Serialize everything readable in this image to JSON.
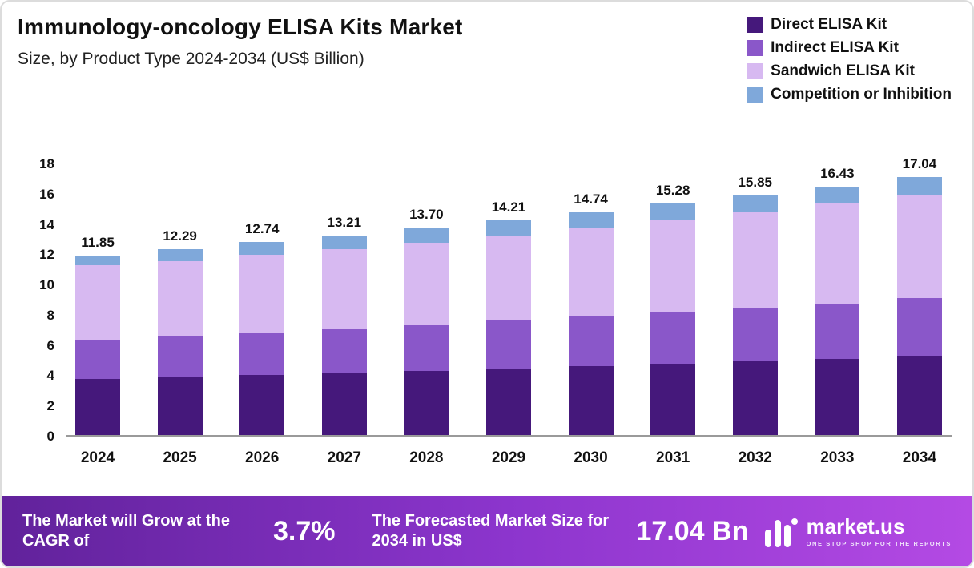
{
  "header": {
    "title": "Immunology-oncology  ELISA Kits Market",
    "subtitle": "Size, by Product Type 2024-2034 (US$ Billion)"
  },
  "chart_data": {
    "type": "bar",
    "stacked": true,
    "title": "Immunology-oncology ELISA Kits Market Size, by Product Type 2024-2034 (US$ Billion)",
    "categories": [
      "2024",
      "2025",
      "2026",
      "2027",
      "2028",
      "2029",
      "2030",
      "2031",
      "2032",
      "2033",
      "2034"
    ],
    "totals": [
      11.85,
      12.29,
      12.74,
      13.21,
      13.7,
      14.21,
      14.74,
      15.28,
      15.85,
      16.43,
      17.04
    ],
    "series": [
      {
        "name": "Direct ELISA Kit",
        "color": "#45187b",
        "values": [
          3.7,
          3.85,
          3.95,
          4.1,
          4.25,
          4.4,
          4.55,
          4.7,
          4.85,
          5.05,
          5.25
        ]
      },
      {
        "name": "Indirect ELISA Kit",
        "color": "#8a57c9",
        "values": [
          2.6,
          2.65,
          2.8,
          2.9,
          3.0,
          3.15,
          3.3,
          3.4,
          3.55,
          3.65,
          3.8
        ]
      },
      {
        "name": "Sandwich ELISA Kit",
        "color": "#d7b9f1",
        "values": [
          4.9,
          5.0,
          5.15,
          5.3,
          5.45,
          5.65,
          5.85,
          6.1,
          6.3,
          6.6,
          6.85
        ]
      },
      {
        "name": "Competition or Inhibition",
        "color": "#7fa8da",
        "values": [
          0.65,
          0.79,
          0.84,
          0.91,
          1.0,
          1.01,
          1.04,
          1.08,
          1.15,
          1.13,
          1.14
        ]
      }
    ],
    "ylim": [
      0,
      18
    ],
    "ytick_step": 2,
    "grid": false,
    "legend_position": "top-right"
  },
  "footer": {
    "cagr_label": "The Market will Grow at the CAGR of",
    "cagr_value": "3.7%",
    "forecast_label": "The Forecasted Market Size for 2034 in US$",
    "forecast_value": "17.04 Bn",
    "brand": "market.us",
    "brand_tagline": "ONE STOP SHOP FOR THE REPORTS"
  }
}
